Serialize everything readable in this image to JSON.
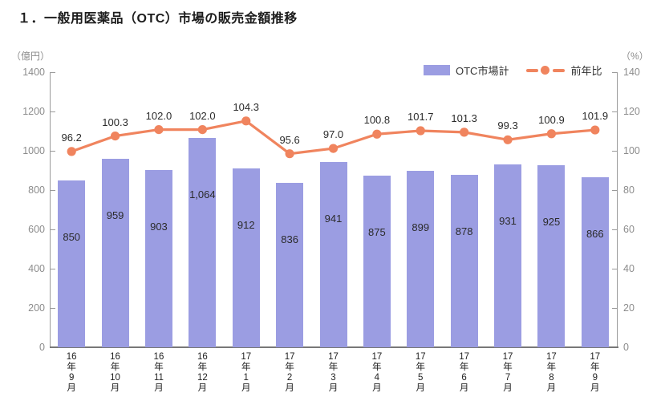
{
  "title": "１．一般用医薬品（OTC）市場の販売金額推移",
  "legend": {
    "bar_label": "OTC市場計",
    "line_label": "前年比"
  },
  "colors": {
    "bar": "#9b9de2",
    "line": "#f0845e",
    "axis": "#9a9a9a",
    "axis_text": "#8c8c8c",
    "value_text": "#2b2b2b"
  },
  "chart_data": {
    "type": "bar",
    "title": "１．一般用医薬品（OTC）市場の販売金額推移",
    "categories": [
      "16年9月",
      "16年10月",
      "16年11月",
      "16年12月",
      "17年1月",
      "17年2月",
      "17年3月",
      "17年4月",
      "17年5月",
      "17年6月",
      "17年7月",
      "17年8月",
      "17年9月"
    ],
    "series": [
      {
        "name": "OTC市場計",
        "type": "bar",
        "axis": "left",
        "color": "#9b9de2",
        "values": [
          850,
          959,
          903,
          1064,
          912,
          836,
          941,
          875,
          899,
          878,
          931,
          925,
          866
        ],
        "labels": [
          "850",
          "959",
          "903",
          "1,064",
          "912",
          "836",
          "941",
          "875",
          "899",
          "878",
          "931",
          "925",
          "866"
        ]
      },
      {
        "name": "前年比",
        "type": "line",
        "axis": "right",
        "color": "#f0845e",
        "values": [
          96.2,
          100.3,
          102.0,
          102.0,
          104.3,
          95.6,
          97.0,
          100.8,
          101.7,
          101.3,
          99.3,
          100.9,
          101.9
        ],
        "labels": [
          "96.2",
          "100.3",
          "102.0",
          "102.0",
          "104.3",
          "95.6",
          "97.0",
          "100.8",
          "101.7",
          "101.3",
          "99.3",
          "100.9",
          "101.9"
        ]
      }
    ],
    "left_axis": {
      "unit": "（億円）",
      "min": 0,
      "max": 1400,
      "step": 200
    },
    "right_axis": {
      "unit": "（%）",
      "min": 0,
      "max": 140,
      "step": 20
    },
    "grid": "none",
    "legend_position": "top-right"
  }
}
